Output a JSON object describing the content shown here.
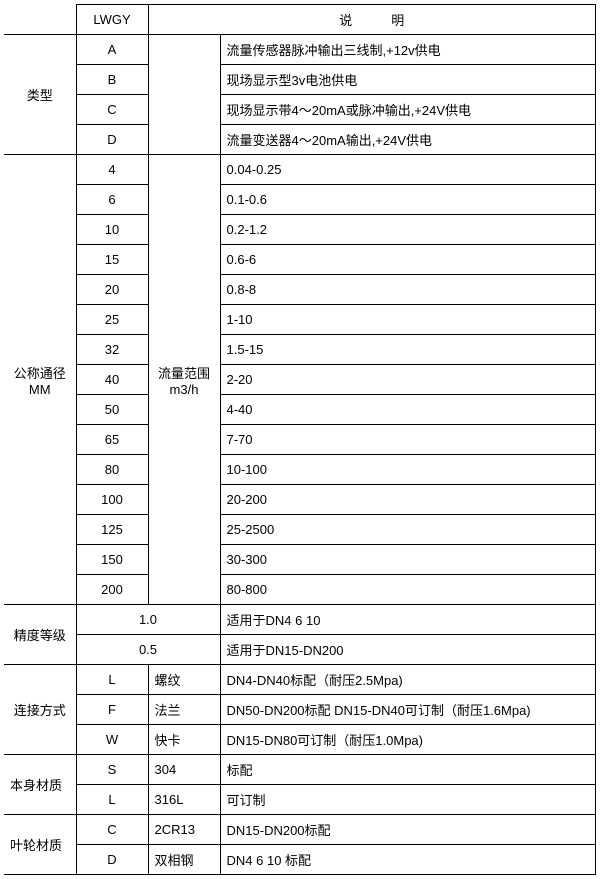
{
  "header": {
    "col_a": "LWGY",
    "col_b": "说　　　明"
  },
  "type": {
    "label": "类型",
    "rows": [
      {
        "code": "A",
        "desc": "流量传感器脉冲输出三线制,+12v供电"
      },
      {
        "code": "B",
        "desc": "现场显示型3v电池供电"
      },
      {
        "code": "C",
        "desc": "现场显示带4～20mA或脉冲输出,+24V供电"
      },
      {
        "code": "D",
        "desc": "流量变送器4～20mA输出,+24V供电"
      }
    ]
  },
  "nominal": {
    "label_l1": "公称通径",
    "label_l2": "MM",
    "range_l1": "流量范围",
    "range_l2": "m3/h",
    "rows": [
      {
        "dn": "4",
        "val": "0.04-0.25"
      },
      {
        "dn": "6",
        "val": "0.1-0.6"
      },
      {
        "dn": "10",
        "val": "0.2-1.2"
      },
      {
        "dn": "15",
        "val": "0.6-6"
      },
      {
        "dn": "20",
        "val": "0.8-8"
      },
      {
        "dn": "25",
        "val": "1-10"
      },
      {
        "dn": "32",
        "val": "1.5-15"
      },
      {
        "dn": "40",
        "val": "2-20"
      },
      {
        "dn": "50",
        "val": "4-40"
      },
      {
        "dn": "65",
        "val": "7-70"
      },
      {
        "dn": "80",
        "val": "10-100"
      },
      {
        "dn": "100",
        "val": "20-200"
      },
      {
        "dn": "125",
        "val": "25-2500"
      },
      {
        "dn": "150",
        "val": "30-300"
      },
      {
        "dn": "200",
        "val": "80-800"
      }
    ]
  },
  "accuracy": {
    "label": "精度等级",
    "rows": [
      {
        "grade": "1.0",
        "desc": "适用于DN4  6  10"
      },
      {
        "grade": "0.5",
        "desc": "适用于DN15-DN200"
      }
    ]
  },
  "connection": {
    "label": "连接方式",
    "rows": [
      {
        "code": "L",
        "name": "螺纹",
        "desc": "DN4-DN40标配（耐压2.5Mpa)"
      },
      {
        "code": "F",
        "name": "法兰",
        "desc": "DN50-DN200标配 DN15-DN40可订制（耐压1.6Mpa)"
      },
      {
        "code": "W",
        "name": "快卡",
        "desc": "DN15-DN80可订制（耐压1.0Mpa)"
      }
    ]
  },
  "body_mat": {
    "label": "本身材质",
    "rows": [
      {
        "code": "S",
        "name": "304",
        "desc": "标配"
      },
      {
        "code": "L",
        "name": "316L",
        "desc": "可订制"
      }
    ]
  },
  "impeller": {
    "label": "叶轮材质",
    "rows": [
      {
        "code": "C",
        "name": "2CR13",
        "desc": "DN15-DN200标配"
      },
      {
        "code": "D",
        "name": "双相钢",
        "desc": "DN4 6 10 标配"
      }
    ]
  }
}
